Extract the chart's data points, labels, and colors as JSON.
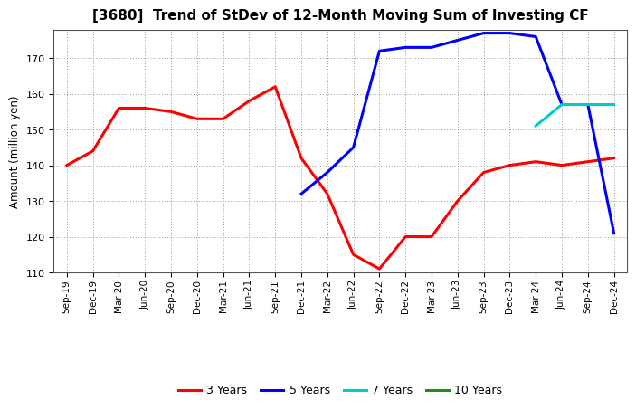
{
  "title": "[3680]  Trend of StDev of 12-Month Moving Sum of Investing CF",
  "ylabel": "Amount (million yen)",
  "background_color": "#ffffff",
  "grid_color": "#999999",
  "ylim": [
    110,
    178
  ],
  "yticks": [
    110,
    120,
    130,
    140,
    150,
    160,
    170
  ],
  "series": {
    "3 Years": {
      "color": "#ff0000",
      "dates": [
        "Sep-19",
        "Dec-19",
        "Mar-20",
        "Jun-20",
        "Sep-20",
        "Dec-20",
        "Mar-21",
        "Jun-21",
        "Sep-21",
        "Dec-21",
        "Mar-22",
        "Jun-22",
        "Sep-22",
        "Dec-22",
        "Mar-23",
        "Jun-23",
        "Sep-23",
        "Dec-23",
        "Mar-24",
        "Jun-24",
        "Sep-24",
        "Dec-24"
      ],
      "values": [
        140,
        144,
        156,
        156,
        155,
        153,
        153,
        158,
        162,
        142,
        132,
        115,
        111,
        120,
        120,
        130,
        138,
        140,
        141,
        140,
        141,
        142
      ]
    },
    "5 Years": {
      "color": "#0000ff",
      "dates": [
        "Dec-21",
        "Mar-22",
        "Jun-22",
        "Sep-22",
        "Dec-22",
        "Mar-23",
        "Jun-23",
        "Sep-23",
        "Dec-23",
        "Mar-24",
        "Jun-24",
        "Sep-24",
        "Dec-24"
      ],
      "values": [
        132,
        138,
        145,
        172,
        173,
        173,
        175,
        177,
        177,
        176,
        157,
        157,
        121
      ]
    },
    "7 Years": {
      "color": "#00cccc",
      "dates": [
        "Mar-24",
        "Jun-24",
        "Sep-24",
        "Dec-24"
      ],
      "values": [
        151,
        157,
        157,
        157
      ]
    },
    "10 Years": {
      "color": "#228b22",
      "dates": [],
      "values": []
    }
  },
  "xtick_labels": [
    "Sep-19",
    "Dec-19",
    "Mar-20",
    "Jun-20",
    "Sep-20",
    "Dec-20",
    "Mar-21",
    "Jun-21",
    "Sep-21",
    "Dec-21",
    "Mar-22",
    "Jun-22",
    "Sep-22",
    "Dec-22",
    "Mar-23",
    "Jun-23",
    "Sep-23",
    "Dec-23",
    "Mar-24",
    "Jun-24",
    "Sep-24",
    "Dec-24"
  ],
  "legend_order": [
    "3 Years",
    "5 Years",
    "7 Years",
    "10 Years"
  ],
  "linewidth": 2.2
}
